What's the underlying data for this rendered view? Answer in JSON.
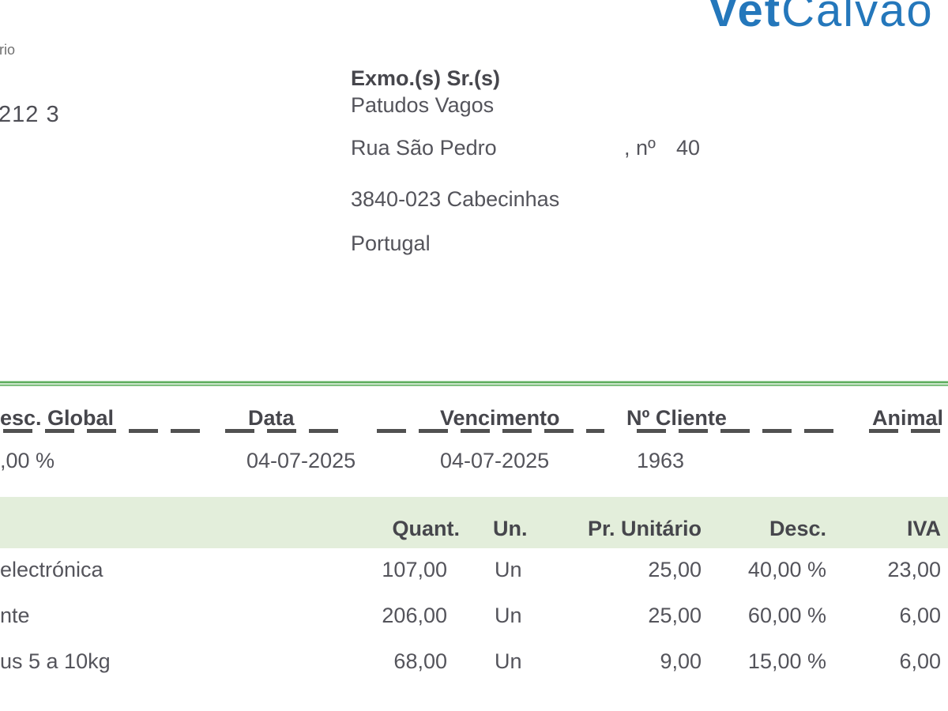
{
  "brand": {
    "logo_bold": "Vet",
    "logo_light": "Calvão"
  },
  "sender": {
    "fragment_top": "rio",
    "fragment_number": "212 3"
  },
  "recipient": {
    "salutation": "Exmo.(s) Sr.(s)",
    "name": "Patudos Vagos",
    "street": "Rua São Pedro",
    "number_prefix": ", nº",
    "number": "40",
    "postal_city": "3840-023 Cabecinhas",
    "country": "Portugal"
  },
  "meta": {
    "col1": {
      "label": "esc. Global",
      "value": ",00 %"
    },
    "col2": {
      "label": "Data",
      "value": "04-07-2025"
    },
    "col3": {
      "label": "Vencimento",
      "value": "04-07-2025"
    },
    "col4": {
      "label": "Nº Cliente",
      "value": "1963"
    },
    "col5": {
      "label": "Animal",
      "value": ""
    }
  },
  "items": {
    "headers": {
      "quant": "Quant.",
      "un": "Un.",
      "pr_unitario": "Pr. Unitário",
      "desc": "Desc.",
      "iva": "IVA"
    },
    "rows": [
      {
        "descricao": "electrónica",
        "quant": "107,00",
        "un": "Un",
        "pr_unitario": "25,00",
        "desc": "40,00 %",
        "iva": "23,00"
      },
      {
        "descricao": "nte",
        "quant": "206,00",
        "un": "Un",
        "pr_unitario": "25,00",
        "desc": "60,00 %",
        "iva": "6,00"
      },
      {
        "descricao": "us 5 a 10kg",
        "quant": "68,00",
        "un": "Un",
        "pr_unitario": "9,00",
        "desc": "15,00 %",
        "iva": "6,00"
      }
    ]
  },
  "colors": {
    "logo_blue": "#2477bb",
    "rule_green": "#5fae5f",
    "table_header_bg": "#e3eedb",
    "text_dark": "#54545b"
  }
}
